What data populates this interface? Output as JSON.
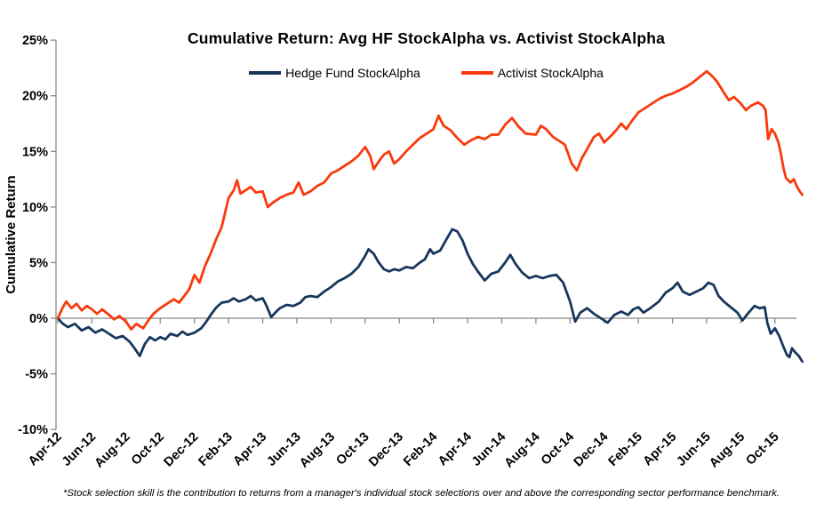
{
  "footnote": "*Stock selection skill is the contribution to returns from a manager's individual stock selections over and above the corresponding sector performance benchmark.",
  "colors": {
    "hedge_fund_line": "#16365C",
    "activist_line": "#F83A0C",
    "axis_line": "#898989",
    "text": "#000000"
  },
  "chart_data": {
    "type": "line",
    "title": "Cumulative Return: Avg HF StockAlpha vs. Activist StockAlpha",
    "xlabel": "",
    "ylabel": "Cumulative Return",
    "ylim": [
      -10,
      25
    ],
    "grid": "zero-line-only",
    "legend_position": "top-center",
    "y_tick_values": [
      25,
      20,
      15,
      10,
      5,
      0,
      -5,
      -10
    ],
    "y_tick_labels": [
      "25%",
      "20%",
      "15%",
      "10%",
      "5%",
      "0%",
      "-5%",
      "-10%"
    ],
    "x_tick_labels": [
      "Apr-12",
      "Jun-12",
      "Aug-12",
      "Oct-12",
      "Dec-12",
      "Feb-13",
      "Apr-13",
      "Jun-13",
      "Aug-13",
      "Oct-13",
      "Dec-13",
      "Feb-14",
      "Apr-14",
      "Jun-14",
      "Aug-14",
      "Oct-14",
      "Dec-14",
      "Feb-15",
      "Apr-15",
      "Jun-15",
      "Aug-15",
      "Oct-15"
    ],
    "x_tick_interval_months": 2,
    "x_unit": "months since Apr-2012",
    "series": [
      {
        "name": "Hedge Fund StockAlpha",
        "color": "#16365C",
        "points": [
          [
            0,
            0
          ],
          [
            0.3,
            -0.5
          ],
          [
            0.6,
            -0.8
          ],
          [
            1,
            -0.5
          ],
          [
            1.4,
            -1.1
          ],
          [
            1.8,
            -0.8
          ],
          [
            2.2,
            -1.3
          ],
          [
            2.6,
            -1.0
          ],
          [
            3,
            -1.4
          ],
          [
            3.4,
            -1.8
          ],
          [
            3.8,
            -1.6
          ],
          [
            4.2,
            -2.1
          ],
          [
            4.5,
            -2.7
          ],
          [
            4.8,
            -3.4
          ],
          [
            5.1,
            -2.3
          ],
          [
            5.4,
            -1.7
          ],
          [
            5.7,
            -2.0
          ],
          [
            6,
            -1.7
          ],
          [
            6.3,
            -1.9
          ],
          [
            6.6,
            -1.4
          ],
          [
            7,
            -1.6
          ],
          [
            7.3,
            -1.2
          ],
          [
            7.6,
            -1.5
          ],
          [
            8,
            -1.3
          ],
          [
            8.4,
            -0.9
          ],
          [
            8.7,
            -0.3
          ],
          [
            9,
            0.4
          ],
          [
            9.3,
            1.0
          ],
          [
            9.6,
            1.4
          ],
          [
            10,
            1.5
          ],
          [
            10.3,
            1.8
          ],
          [
            10.6,
            1.5
          ],
          [
            11,
            1.7
          ],
          [
            11.3,
            2.0
          ],
          [
            11.6,
            1.6
          ],
          [
            12,
            1.8
          ],
          [
            12.2,
            1.2
          ],
          [
            12.5,
            0.1
          ],
          [
            12.8,
            0.6
          ],
          [
            13,
            0.9
          ],
          [
            13.4,
            1.2
          ],
          [
            13.8,
            1.1
          ],
          [
            14.2,
            1.4
          ],
          [
            14.5,
            1.9
          ],
          [
            14.8,
            2.0
          ],
          [
            15.2,
            1.9
          ],
          [
            15.6,
            2.4
          ],
          [
            16,
            2.8
          ],
          [
            16.4,
            3.3
          ],
          [
            16.8,
            3.6
          ],
          [
            17.2,
            4.0
          ],
          [
            17.6,
            4.6
          ],
          [
            18,
            5.6
          ],
          [
            18.2,
            6.2
          ],
          [
            18.5,
            5.8
          ],
          [
            18.8,
            5.0
          ],
          [
            19.1,
            4.4
          ],
          [
            19.4,
            4.2
          ],
          [
            19.7,
            4.4
          ],
          [
            20,
            4.3
          ],
          [
            20.4,
            4.6
          ],
          [
            20.8,
            4.5
          ],
          [
            21.2,
            5.0
          ],
          [
            21.5,
            5.3
          ],
          [
            21.8,
            6.2
          ],
          [
            22,
            5.8
          ],
          [
            22.4,
            6.1
          ],
          [
            22.8,
            7.2
          ],
          [
            23.1,
            8.0
          ],
          [
            23.4,
            7.8
          ],
          [
            23.7,
            7.0
          ],
          [
            24,
            5.8
          ],
          [
            24.3,
            4.9
          ],
          [
            24.6,
            4.2
          ],
          [
            25,
            3.4
          ],
          [
            25.4,
            4.0
          ],
          [
            25.8,
            4.2
          ],
          [
            26.2,
            5.0
          ],
          [
            26.5,
            5.7
          ],
          [
            26.8,
            4.9
          ],
          [
            27.2,
            4.1
          ],
          [
            27.6,
            3.6
          ],
          [
            28,
            3.8
          ],
          [
            28.4,
            3.6
          ],
          [
            28.8,
            3.8
          ],
          [
            29.2,
            3.9
          ],
          [
            29.6,
            3.2
          ],
          [
            30,
            1.5
          ],
          [
            30.3,
            -0.3
          ],
          [
            30.6,
            0.5
          ],
          [
            31,
            0.9
          ],
          [
            31.4,
            0.4
          ],
          [
            31.8,
            0.0
          ],
          [
            32.2,
            -0.4
          ],
          [
            32.6,
            0.3
          ],
          [
            33,
            0.6
          ],
          [
            33.4,
            0.3
          ],
          [
            33.7,
            0.8
          ],
          [
            34,
            1.0
          ],
          [
            34.3,
            0.5
          ],
          [
            34.7,
            0.9
          ],
          [
            35.2,
            1.5
          ],
          [
            35.6,
            2.3
          ],
          [
            36,
            2.7
          ],
          [
            36.3,
            3.2
          ],
          [
            36.6,
            2.4
          ],
          [
            37,
            2.1
          ],
          [
            37.4,
            2.4
          ],
          [
            37.8,
            2.7
          ],
          [
            38.1,
            3.2
          ],
          [
            38.4,
            3.0
          ],
          [
            38.7,
            2.0
          ],
          [
            39,
            1.5
          ],
          [
            39.4,
            1.0
          ],
          [
            39.8,
            0.5
          ],
          [
            40.1,
            -0.2
          ],
          [
            40.4,
            0.4
          ],
          [
            40.8,
            1.1
          ],
          [
            41.1,
            0.9
          ],
          [
            41.4,
            1.0
          ],
          [
            41.55,
            -0.4
          ],
          [
            41.75,
            -1.4
          ],
          [
            42,
            -0.9
          ],
          [
            42.25,
            -1.6
          ],
          [
            42.45,
            -2.4
          ],
          [
            42.7,
            -3.3
          ],
          [
            42.85,
            -3.5
          ],
          [
            43,
            -2.7
          ],
          [
            43.2,
            -3.1
          ],
          [
            43.4,
            -3.4
          ],
          [
            43.6,
            -3.9
          ]
        ]
      },
      {
        "name": "Activist StockAlpha",
        "color": "#F83A0C",
        "points": [
          [
            0,
            0
          ],
          [
            0.3,
            1.0
          ],
          [
            0.5,
            1.5
          ],
          [
            0.8,
            0.9
          ],
          [
            1.1,
            1.3
          ],
          [
            1.4,
            0.7
          ],
          [
            1.7,
            1.1
          ],
          [
            2,
            0.8
          ],
          [
            2.3,
            0.4
          ],
          [
            2.6,
            0.8
          ],
          [
            3,
            0.3
          ],
          [
            3.3,
            -0.1
          ],
          [
            3.6,
            0.2
          ],
          [
            4,
            -0.3
          ],
          [
            4.3,
            -1.0
          ],
          [
            4.6,
            -0.5
          ],
          [
            5,
            -0.9
          ],
          [
            5.3,
            -0.2
          ],
          [
            5.6,
            0.4
          ],
          [
            6,
            0.9
          ],
          [
            6.4,
            1.3
          ],
          [
            6.8,
            1.7
          ],
          [
            7.1,
            1.4
          ],
          [
            7.4,
            2.0
          ],
          [
            7.7,
            2.6
          ],
          [
            8,
            3.9
          ],
          [
            8.3,
            3.2
          ],
          [
            8.6,
            4.6
          ],
          [
            9,
            6.0
          ],
          [
            9.3,
            7.2
          ],
          [
            9.6,
            8.2
          ],
          [
            10,
            10.8
          ],
          [
            10.3,
            11.5
          ],
          [
            10.5,
            12.4
          ],
          [
            10.7,
            11.2
          ],
          [
            11,
            11.5
          ],
          [
            11.3,
            11.8
          ],
          [
            11.6,
            11.3
          ],
          [
            12,
            11.4
          ],
          [
            12.3,
            10.0
          ],
          [
            12.6,
            10.4
          ],
          [
            13,
            10.8
          ],
          [
            13.4,
            11.1
          ],
          [
            13.8,
            11.3
          ],
          [
            14.1,
            12.2
          ],
          [
            14.4,
            11.1
          ],
          [
            14.8,
            11.4
          ],
          [
            15.2,
            11.9
          ],
          [
            15.6,
            12.2
          ],
          [
            16,
            13.0
          ],
          [
            16.4,
            13.3
          ],
          [
            16.8,
            13.7
          ],
          [
            17.2,
            14.1
          ],
          [
            17.6,
            14.6
          ],
          [
            18,
            15.4
          ],
          [
            18.3,
            14.6
          ],
          [
            18.5,
            13.4
          ],
          [
            18.8,
            14.1
          ],
          [
            19.1,
            14.7
          ],
          [
            19.4,
            15.0
          ],
          [
            19.7,
            13.9
          ],
          [
            20,
            14.3
          ],
          [
            20.4,
            15.0
          ],
          [
            20.8,
            15.6
          ],
          [
            21.2,
            16.2
          ],
          [
            21.6,
            16.6
          ],
          [
            22,
            17.0
          ],
          [
            22.3,
            18.2
          ],
          [
            22.6,
            17.3
          ],
          [
            23,
            16.9
          ],
          [
            23.4,
            16.2
          ],
          [
            23.8,
            15.6
          ],
          [
            24.2,
            16.0
          ],
          [
            24.6,
            16.3
          ],
          [
            25,
            16.1
          ],
          [
            25.4,
            16.5
          ],
          [
            25.8,
            16.5
          ],
          [
            26.2,
            17.4
          ],
          [
            26.6,
            18.0
          ],
          [
            27,
            17.2
          ],
          [
            27.4,
            16.6
          ],
          [
            28,
            16.5
          ],
          [
            28.3,
            17.3
          ],
          [
            28.6,
            17.0
          ],
          [
            29,
            16.3
          ],
          [
            29.4,
            15.9
          ],
          [
            29.7,
            15.6
          ],
          [
            30.1,
            13.9
          ],
          [
            30.4,
            13.3
          ],
          [
            30.7,
            14.4
          ],
          [
            31,
            15.2
          ],
          [
            31.4,
            16.3
          ],
          [
            31.7,
            16.6
          ],
          [
            32,
            15.8
          ],
          [
            32.4,
            16.4
          ],
          [
            32.7,
            16.9
          ],
          [
            33,
            17.5
          ],
          [
            33.3,
            17.0
          ],
          [
            33.6,
            17.7
          ],
          [
            34,
            18.5
          ],
          [
            34.4,
            18.9
          ],
          [
            34.8,
            19.3
          ],
          [
            35.2,
            19.7
          ],
          [
            35.6,
            20.0
          ],
          [
            36,
            20.2
          ],
          [
            36.4,
            20.5
          ],
          [
            36.8,
            20.8
          ],
          [
            37.2,
            21.2
          ],
          [
            37.6,
            21.7
          ],
          [
            38,
            22.2
          ],
          [
            38.3,
            21.8
          ],
          [
            38.6,
            21.3
          ],
          [
            39,
            20.3
          ],
          [
            39.3,
            19.6
          ],
          [
            39.6,
            19.9
          ],
          [
            40,
            19.3
          ],
          [
            40.3,
            18.7
          ],
          [
            40.6,
            19.1
          ],
          [
            41,
            19.4
          ],
          [
            41.3,
            19.1
          ],
          [
            41.45,
            18.7
          ],
          [
            41.6,
            16.1
          ],
          [
            41.8,
            17.0
          ],
          [
            42,
            16.6
          ],
          [
            42.2,
            15.8
          ],
          [
            42.35,
            14.8
          ],
          [
            42.5,
            13.5
          ],
          [
            42.65,
            12.6
          ],
          [
            42.9,
            12.2
          ],
          [
            43.1,
            12.5
          ],
          [
            43.3,
            11.8
          ],
          [
            43.45,
            11.4
          ],
          [
            43.6,
            11.1
          ]
        ]
      }
    ]
  }
}
